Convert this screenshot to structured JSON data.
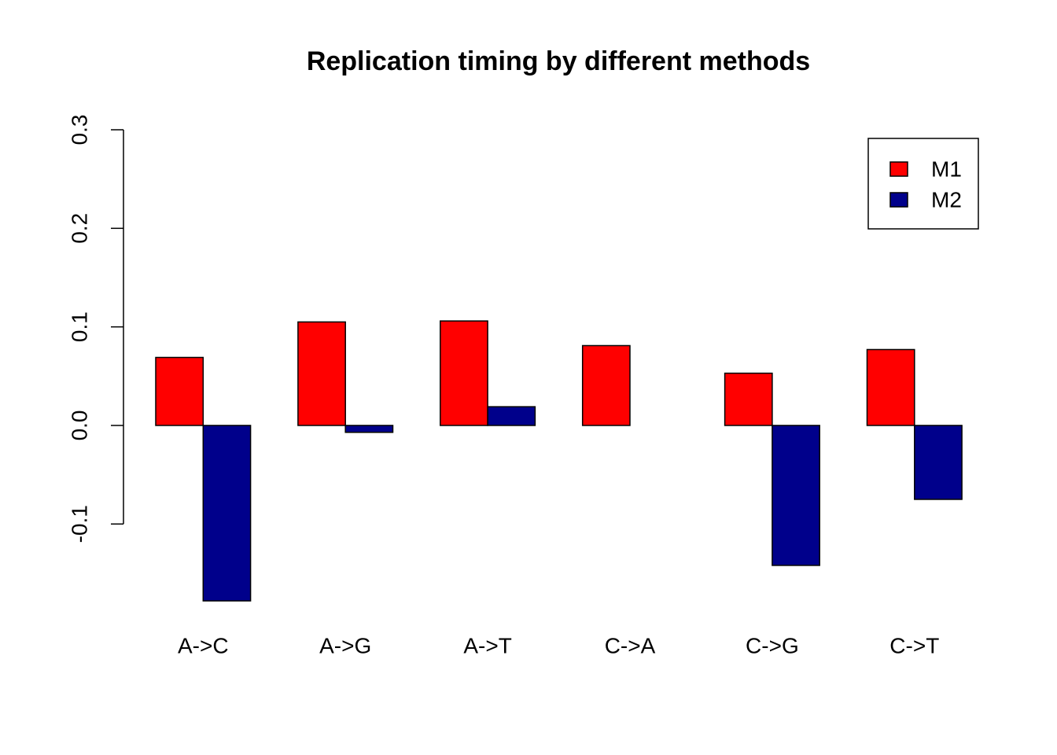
{
  "chart_data": {
    "type": "bar",
    "title": "Replication timing by  different methods",
    "categories": [
      "A->C",
      "A->G",
      "A->T",
      "C->A",
      "C->G",
      "C->T"
    ],
    "series": [
      {
        "name": "M1",
        "color": "#ff0000",
        "values": [
          0.069,
          0.105,
          0.106,
          0.081,
          0.053,
          0.077
        ]
      },
      {
        "name": "M2",
        "color": "#00008b",
        "values": [
          -0.178,
          -0.007,
          0.019,
          0.0,
          -0.142,
          -0.075
        ]
      }
    ],
    "ylim": [
      -0.2,
      0.3
    ],
    "yticks": [
      -0.1,
      {
        "value": 0,
        "label": "0.0"
      },
      0.1,
      0.2,
      0.3
    ],
    "legend": "top-right"
  }
}
